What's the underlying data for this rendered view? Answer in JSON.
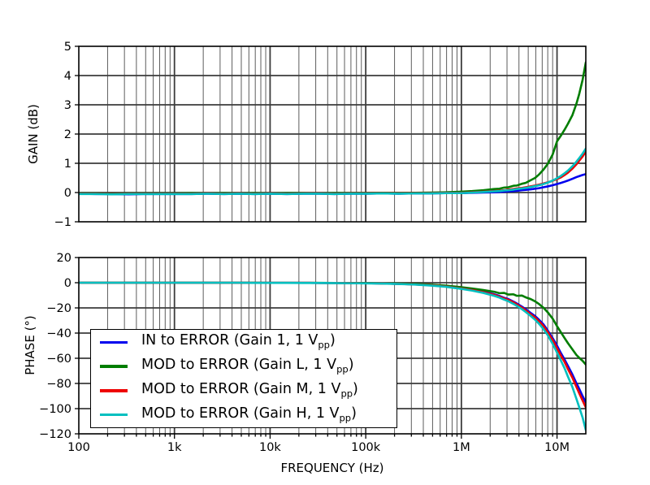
{
  "chart_data": {
    "type": "line",
    "x_axis": {
      "label": "FREQUENCY (Hz)",
      "scale": "log",
      "range": [
        100,
        20000000
      ],
      "major_ticks": [
        100,
        1000,
        10000,
        100000,
        1000000,
        10000000
      ],
      "tick_labels": [
        "100",
        "1k",
        "10k",
        "100k",
        "1M",
        "10M"
      ],
      "grid": true
    },
    "subplots": [
      {
        "id": "gain",
        "ylabel": "GAIN (dB)",
        "ylim": [
          -1,
          5
        ],
        "yticks": [
          5,
          4,
          3,
          2,
          1,
          0,
          -1
        ]
      },
      {
        "id": "phase",
        "ylabel": "PHASE (°)",
        "ylim": [
          -120,
          20
        ],
        "yticks": [
          20,
          0,
          -20,
          -40,
          -60,
          -80,
          -100,
          -120
        ]
      }
    ],
    "legend_position": "lower-left-of-phase-plot",
    "freq": [
      100,
      150,
      220,
      330,
      470,
      680,
      1000,
      1500,
      2200,
      3300,
      4700,
      6800,
      10000,
      15000,
      22000,
      33000,
      47000,
      68000,
      100000,
      150000,
      220000,
      330000,
      470000,
      680000,
      1000000,
      1300000,
      1700000,
      2200000,
      2500000,
      2800000,
      3100000,
      3500000,
      3800000,
      4300000,
      4700000,
      5300000,
      5900000,
      6500000,
      7200000,
      8000000,
      9000000,
      10000000,
      11000000,
      12000000,
      13000000,
      14500000,
      16000000,
      17000000,
      18500000,
      20000000
    ],
    "series": [
      {
        "name": "IN to ERROR (Gain 1, 1 Vpp)",
        "color": "#0000ee",
        "gain_db": [
          -0.04,
          -0.05,
          -0.05,
          -0.06,
          -0.05,
          -0.05,
          -0.05,
          -0.05,
          -0.04,
          -0.05,
          -0.04,
          -0.05,
          -0.04,
          -0.05,
          -0.04,
          -0.04,
          -0.05,
          -0.04,
          -0.04,
          -0.03,
          -0.04,
          -0.03,
          -0.03,
          -0.02,
          -0.02,
          -0.01,
          0.0,
          0.01,
          0.02,
          0.03,
          0.04,
          0.05,
          0.06,
          0.08,
          0.09,
          0.11,
          0.13,
          0.15,
          0.18,
          0.21,
          0.25,
          0.29,
          0.33,
          0.37,
          0.41,
          0.47,
          0.53,
          0.56,
          0.6,
          0.63
        ],
        "phase_deg": [
          0,
          0,
          0,
          0,
          0,
          0,
          0,
          0,
          0,
          0,
          0,
          -0.1,
          -0.1,
          -0.1,
          -0.1,
          -0.2,
          -0.2,
          -0.3,
          -0.4,
          -0.6,
          -0.9,
          -1.3,
          -1.9,
          -2.8,
          -4.3,
          -5.5,
          -7.2,
          -9.2,
          -10.5,
          -12,
          -13,
          -15,
          -16.5,
          -19,
          -21,
          -24,
          -26.5,
          -29.5,
          -33,
          -38,
          -44,
          -50,
          -56,
          -61,
          -66,
          -73,
          -80,
          -84,
          -90,
          -95
        ]
      },
      {
        "name": "MOD to ERROR (Gain L, 1 Vpp)",
        "color": "#007d00",
        "gain_db": [
          -0.03,
          -0.03,
          -0.04,
          -0.03,
          -0.03,
          -0.03,
          -0.03,
          -0.02,
          -0.03,
          -0.02,
          -0.03,
          -0.02,
          -0.03,
          -0.02,
          -0.02,
          -0.03,
          -0.02,
          -0.02,
          -0.02,
          -0.01,
          -0.02,
          -0.01,
          0.0,
          0.01,
          0.03,
          0.05,
          0.08,
          0.12,
          0.13,
          0.17,
          0.18,
          0.23,
          0.24,
          0.3,
          0.33,
          0.42,
          0.5,
          0.62,
          0.78,
          0.98,
          1.3,
          1.75,
          1.95,
          2.15,
          2.35,
          2.65,
          3.05,
          3.35,
          3.85,
          4.45
        ],
        "phase_deg": [
          0,
          0,
          0,
          0,
          0,
          0,
          0,
          0,
          0,
          0,
          0,
          0,
          -0.1,
          -0.1,
          -0.1,
          -0.1,
          -0.2,
          -0.2,
          -0.3,
          -0.5,
          -0.7,
          -1,
          -1.5,
          -2.3,
          -3.6,
          -4.6,
          -5.8,
          -7.2,
          -8.3,
          -8.1,
          -9.4,
          -9.2,
          -10.4,
          -10.2,
          -11.6,
          -13,
          -14.8,
          -17,
          -19.8,
          -23.5,
          -28.5,
          -34.5,
          -39.5,
          -44,
          -48,
          -53,
          -57.5,
          -59.5,
          -62,
          -65
        ]
      },
      {
        "name": "MOD to ERROR (Gain M, 1 Vpp)",
        "color": "#ee0000",
        "gain_db": [
          -0.04,
          -0.04,
          -0.05,
          -0.04,
          -0.04,
          -0.04,
          -0.04,
          -0.04,
          -0.03,
          -0.04,
          -0.03,
          -0.04,
          -0.03,
          -0.04,
          -0.03,
          -0.03,
          -0.04,
          -0.03,
          -0.03,
          -0.02,
          -0.03,
          -0.02,
          -0.02,
          -0.01,
          -0.01,
          0.01,
          0.03,
          0.05,
          0.06,
          0.08,
          0.1,
          0.12,
          0.14,
          0.16,
          0.18,
          0.21,
          0.24,
          0.27,
          0.31,
          0.35,
          0.4,
          0.46,
          0.52,
          0.6,
          0.68,
          0.82,
          0.97,
          1.08,
          1.23,
          1.4
        ],
        "phase_deg": [
          0,
          0,
          0,
          0,
          0,
          0,
          0,
          0,
          0,
          0,
          0,
          -0.1,
          -0.1,
          -0.1,
          -0.1,
          -0.2,
          -0.2,
          -0.3,
          -0.4,
          -0.6,
          -0.9,
          -1.4,
          -2,
          -2.9,
          -4.5,
          -5.8,
          -7.5,
          -9.6,
          -11,
          -12.5,
          -13.6,
          -15.6,
          -17.2,
          -19.8,
          -21.9,
          -25,
          -27.6,
          -30.7,
          -34.3,
          -39.3,
          -45.5,
          -52,
          -58,
          -63,
          -68.5,
          -75.5,
          -83,
          -87.5,
          -93.5,
          -99
        ]
      },
      {
        "name": "MOD to ERROR (Gain H, 1 Vpp)",
        "color": "#00bfbf",
        "gain_db": [
          -0.05,
          -0.05,
          -0.06,
          -0.05,
          -0.05,
          -0.05,
          -0.05,
          -0.05,
          -0.04,
          -0.05,
          -0.04,
          -0.05,
          -0.04,
          -0.05,
          -0.04,
          -0.04,
          -0.05,
          -0.04,
          -0.04,
          -0.03,
          -0.04,
          -0.03,
          -0.03,
          -0.02,
          -0.02,
          0.0,
          0.02,
          0.04,
          0.05,
          0.07,
          0.08,
          0.1,
          0.12,
          0.14,
          0.16,
          0.19,
          0.22,
          0.25,
          0.29,
          0.34,
          0.41,
          0.49,
          0.57,
          0.66,
          0.75,
          0.9,
          1.06,
          1.17,
          1.33,
          1.5
        ],
        "phase_deg": [
          0,
          0,
          0,
          0,
          0,
          0,
          0,
          0,
          0,
          0,
          0,
          -0.1,
          -0.1,
          -0.1,
          -0.2,
          -0.2,
          -0.3,
          -0.4,
          -0.5,
          -0.7,
          -1,
          -1.5,
          -2.2,
          -3.2,
          -4.9,
          -6.3,
          -8.1,
          -10.4,
          -11.8,
          -13.4,
          -14.7,
          -16.8,
          -18.4,
          -21,
          -23.2,
          -26.4,
          -29.4,
          -32.7,
          -36.7,
          -41.7,
          -48.5,
          -55.5,
          -62,
          -68,
          -74.5,
          -83,
          -92.5,
          -98.5,
          -107,
          -117
        ]
      }
    ]
  },
  "legend": {
    "items": [
      {
        "prefix": "IN to ERROR (Gain 1, 1 V",
        "sub": "pp",
        "suffix": ")",
        "color": "#0000ee"
      },
      {
        "prefix": "MOD to ERROR (Gain L, 1 V",
        "sub": "pp",
        "suffix": ")",
        "color": "#007d00"
      },
      {
        "prefix": "MOD to ERROR (Gain M, 1 V",
        "sub": "pp",
        "suffix": ")",
        "color": "#ee0000"
      },
      {
        "prefix": "MOD to ERROR (Gain H, 1 V",
        "sub": "pp",
        "suffix": ")",
        "color": "#00bfbf"
      }
    ]
  }
}
